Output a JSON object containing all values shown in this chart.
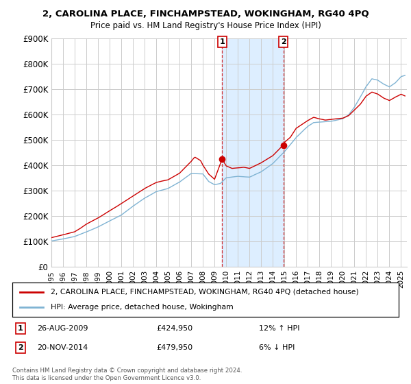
{
  "title": "2, CAROLINA PLACE, FINCHAMPSTEAD, WOKINGHAM, RG40 4PQ",
  "subtitle": "Price paid vs. HM Land Registry's House Price Index (HPI)",
  "ylabel_ticks": [
    "£0",
    "£100K",
    "£200K",
    "£300K",
    "£400K",
    "£500K",
    "£600K",
    "£700K",
    "£800K",
    "£900K"
  ],
  "ylim": [
    0,
    900000
  ],
  "xlim_start": 1995.0,
  "xlim_end": 2025.5,
  "sale1_date": 2009.648,
  "sale1_price": 424950,
  "sale1_label": "1",
  "sale1_info": "26-AUG-2009",
  "sale1_amount": "£424,950",
  "sale1_hpi": "12% ↑ HPI",
  "sale2_date": 2014.896,
  "sale2_price": 479950,
  "sale2_label": "2",
  "sale2_info": "20-NOV-2014",
  "sale2_amount": "£479,950",
  "sale2_hpi": "6% ↓ HPI",
  "line_color_property": "#cc0000",
  "line_color_hpi": "#7fb3d3",
  "background_color": "#ffffff",
  "grid_color": "#cccccc",
  "shade_color": "#ddeeff",
  "legend_label_property": "2, CAROLINA PLACE, FINCHAMPSTEAD, WOKINGHAM, RG40 4PQ (detached house)",
  "legend_label_hpi": "HPI: Average price, detached house, Wokingham",
  "footer": "Contains HM Land Registry data © Crown copyright and database right 2024.\nThis data is licensed under the Open Government Licence v3.0.",
  "sale_marker_box_color": "#cc0000",
  "title_fontsize": 9.5,
  "subtitle_fontsize": 8.5,
  "tick_fontsize": 7.5,
  "ytick_fontsize": 8.5
}
